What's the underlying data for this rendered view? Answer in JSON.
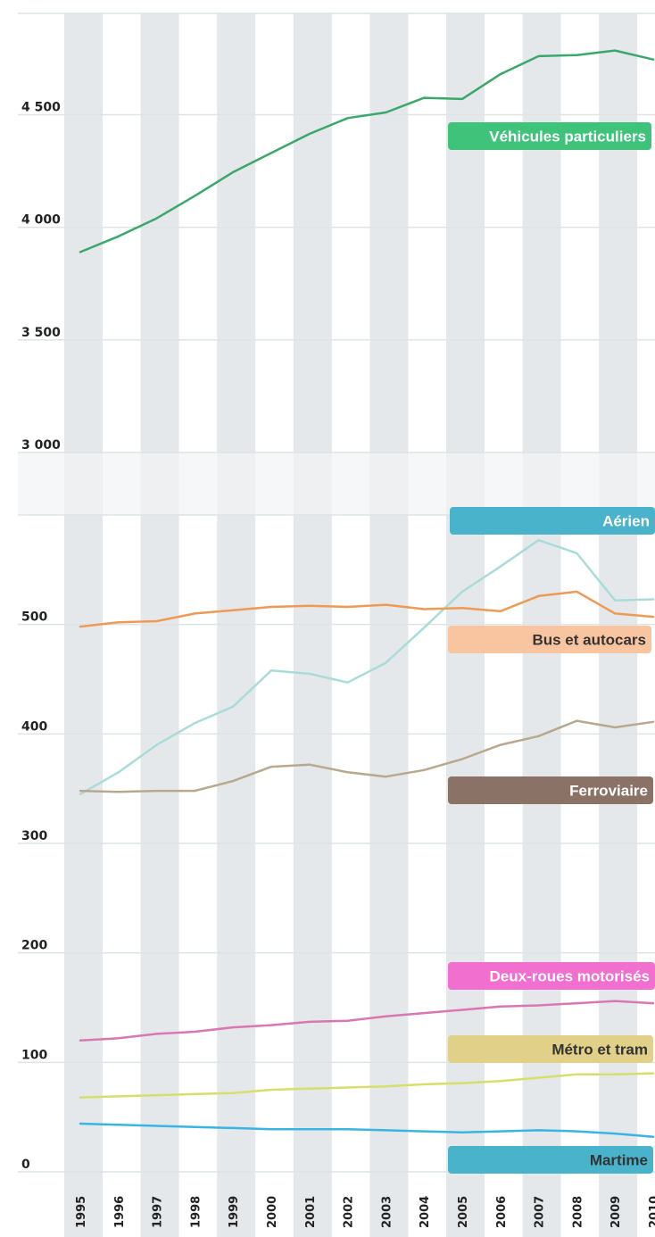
{
  "chart_data": [
    {
      "type": "line",
      "title": "",
      "xlabel": "",
      "ylabel": "",
      "x": [
        1995,
        1996,
        1997,
        1998,
        1999,
        2000,
        2001,
        2002,
        2003,
        2004,
        2005,
        2006,
        2007,
        2008,
        2009,
        2010
      ],
      "ylim": [
        3000,
        4950
      ],
      "yticks": [
        "3 000",
        "3 500",
        "4 000",
        "4 500"
      ],
      "grid": true,
      "series": [
        {
          "name": "Véhicules particuliers",
          "color": "#3aa86a",
          "label_color": "#3fc27a",
          "label_text_color": "#ffffff",
          "values": [
            3890,
            3960,
            4040,
            4140,
            4245,
            4330,
            4415,
            4485,
            4510,
            4575,
            4570,
            4680,
            4760,
            4765,
            4785,
            4745
          ]
        }
      ]
    },
    {
      "type": "line",
      "title": "",
      "xlabel": "",
      "ylabel": "",
      "x": [
        1995,
        1996,
        1997,
        1998,
        1999,
        2000,
        2001,
        2002,
        2003,
        2004,
        2005,
        2006,
        2007,
        2008,
        2009,
        2010
      ],
      "xticks": [
        "1995",
        "1996",
        "1997",
        "1998",
        "1999",
        "2000",
        "2001",
        "2002",
        "2003",
        "2004",
        "2005",
        "2006",
        "2007",
        "2008",
        "2009",
        "2010"
      ],
      "ylim": [
        0,
        600
      ],
      "yticks": [
        "0",
        "100",
        "200",
        "300",
        "400",
        "500"
      ],
      "grid": true,
      "series": [
        {
          "name": "Aérien",
          "color": "#a9dcd9",
          "label_color": "#4ab3cc",
          "label_text_color": "#ffffff",
          "values": [
            345,
            365,
            390,
            410,
            425,
            458,
            455,
            447,
            465,
            497,
            530,
            553,
            577,
            565,
            522,
            523
          ]
        },
        {
          "name": "Bus et autocars",
          "color": "#ee9a55",
          "label_color": "#f9c4a0",
          "label_text_color": "#333333",
          "values": [
            498,
            502,
            503,
            510,
            513,
            516,
            517,
            516,
            518,
            514,
            515,
            512,
            526,
            530,
            510,
            507
          ]
        },
        {
          "name": "Ferroviaire",
          "color": "#b8a98e",
          "label_color": "#8b7266",
          "label_text_color": "#ffffff",
          "values": [
            348,
            347,
            348,
            348,
            357,
            370,
            372,
            365,
            361,
            367,
            377,
            390,
            398,
            412,
            406,
            411
          ]
        },
        {
          "name": "Deux-roues motorisés",
          "color": "#d977b2",
          "label_color": "#f06fcf",
          "label_text_color": "#ffffff",
          "values": [
            120,
            122,
            126,
            128,
            132,
            134,
            137,
            138,
            142,
            145,
            148,
            151,
            152,
            154,
            156,
            154
          ]
        },
        {
          "name": "Métro et tram",
          "color": "#d6df6b",
          "label_color": "#e0d088",
          "label_text_color": "#333333",
          "values": [
            68,
            69,
            70,
            71,
            72,
            75,
            76,
            77,
            78,
            80,
            81,
            83,
            86,
            89,
            89,
            90
          ]
        },
        {
          "name": "Martime",
          "color": "#3ab4e0",
          "label_color": "#4ab3cc",
          "label_text_color": "#333333",
          "values": [
            44,
            43,
            42,
            41,
            40,
            39,
            39,
            39,
            38,
            37,
            36,
            37,
            38,
            37,
            35,
            32
          ]
        }
      ]
    }
  ]
}
